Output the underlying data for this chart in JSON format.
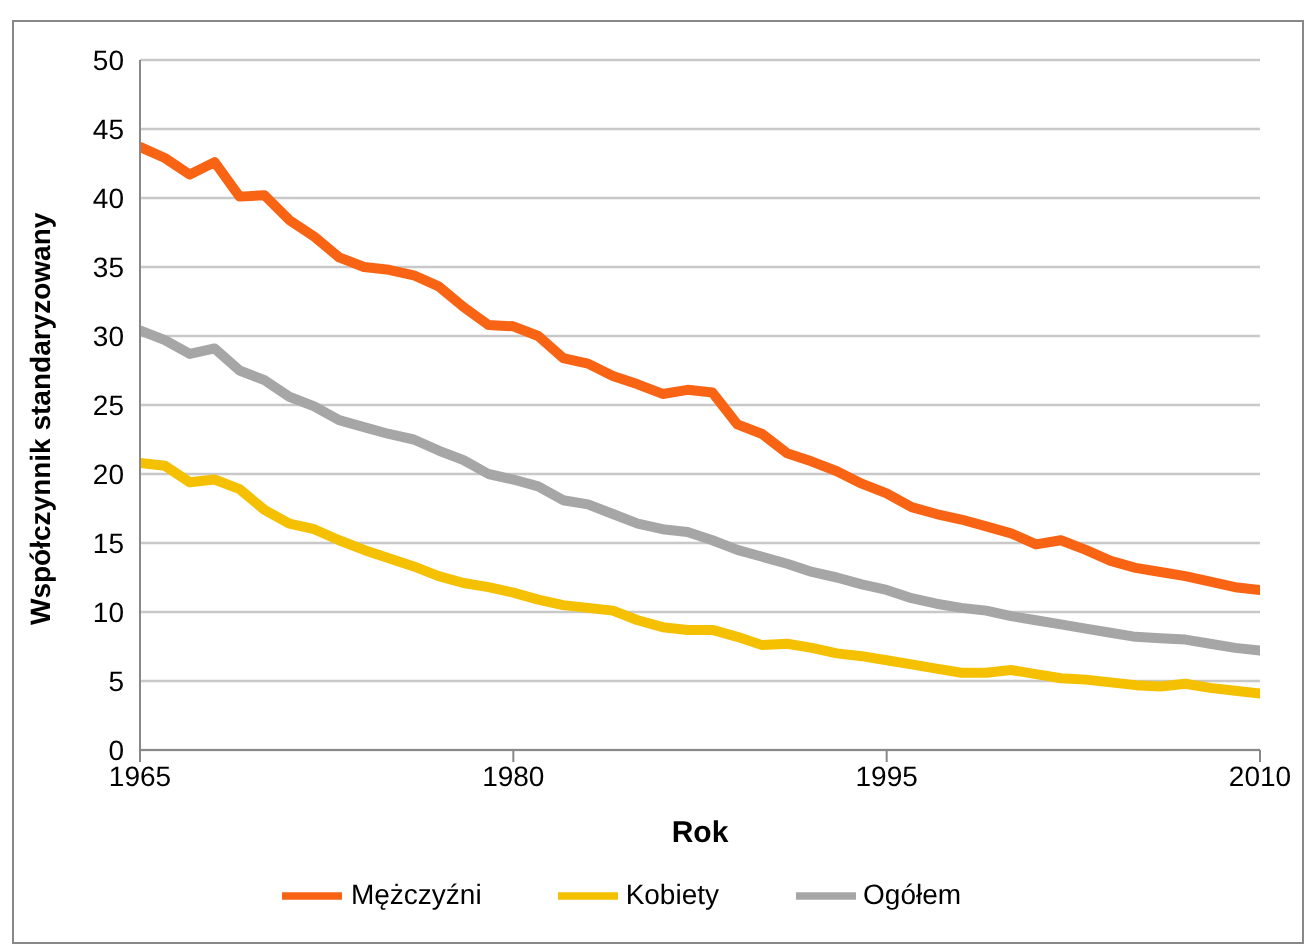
{
  "chart_data": {
    "type": "line",
    "xlabel": "Rok",
    "ylabel": "Współczynnik standaryzowany",
    "x": [
      1965,
      1966,
      1967,
      1968,
      1969,
      1970,
      1971,
      1972,
      1973,
      1974,
      1975,
      1976,
      1977,
      1978,
      1979,
      1980,
      1981,
      1982,
      1983,
      1984,
      1985,
      1986,
      1987,
      1988,
      1989,
      1990,
      1991,
      1992,
      1993,
      1994,
      1995,
      1996,
      1997,
      1998,
      1999,
      2000,
      2001,
      2002,
      2003,
      2004,
      2005,
      2006,
      2007,
      2008,
      2009,
      2010
    ],
    "series": [
      {
        "name": "Mężczyźni",
        "color": "#f86414",
        "values": [
          43.7,
          42.9,
          41.7,
          42.6,
          40.1,
          40.2,
          38.4,
          37.2,
          35.7,
          35.0,
          34.8,
          34.4,
          33.6,
          32.1,
          30.8,
          30.7,
          30.0,
          28.4,
          28.0,
          27.1,
          26.5,
          25.8,
          26.1,
          25.9,
          23.6,
          22.9,
          21.5,
          20.9,
          20.2,
          19.3,
          18.6,
          17.6,
          17.1,
          16.7,
          16.2,
          15.7,
          14.9,
          15.2,
          14.5,
          13.7,
          13.2,
          12.9,
          12.6,
          12.2,
          11.8,
          11.6
        ]
      },
      {
        "name": "Kobiety",
        "color": "#f5c000",
        "values": [
          20.8,
          20.6,
          19.4,
          19.6,
          18.9,
          17.4,
          16.4,
          16.0,
          15.2,
          14.5,
          13.9,
          13.3,
          12.6,
          12.1,
          11.8,
          11.4,
          10.9,
          10.5,
          10.3,
          10.1,
          9.4,
          8.9,
          8.7,
          8.7,
          8.2,
          7.6,
          7.7,
          7.4,
          7.0,
          6.8,
          6.5,
          6.2,
          5.9,
          5.6,
          5.6,
          5.8,
          5.5,
          5.2,
          5.1,
          4.9,
          4.7,
          4.6,
          4.8,
          4.5,
          4.3,
          4.1
        ]
      },
      {
        "name": "Ogółem",
        "color": "#a6a6a6",
        "values": [
          30.4,
          29.7,
          28.7,
          29.1,
          27.5,
          26.8,
          25.6,
          24.9,
          23.9,
          23.4,
          22.9,
          22.5,
          21.7,
          21.0,
          20.0,
          19.6,
          19.1,
          18.1,
          17.8,
          17.1,
          16.4,
          16.0,
          15.8,
          15.2,
          14.5,
          14.0,
          13.5,
          12.9,
          12.5,
          12.0,
          11.6,
          11.0,
          10.6,
          10.3,
          10.1,
          9.7,
          9.4,
          9.1,
          8.8,
          8.5,
          8.2,
          8.1,
          8.0,
          7.7,
          7.4,
          7.2
        ]
      }
    ],
    "xlim": [
      1965,
      2010
    ],
    "xticks": [
      1965,
      1980,
      1995,
      2010
    ],
    "ylim": [
      0,
      50
    ],
    "yticks": [
      0,
      5,
      10,
      15,
      20,
      25,
      30,
      35,
      40,
      45,
      50
    ],
    "grid": "y",
    "legend": "bottom"
  }
}
